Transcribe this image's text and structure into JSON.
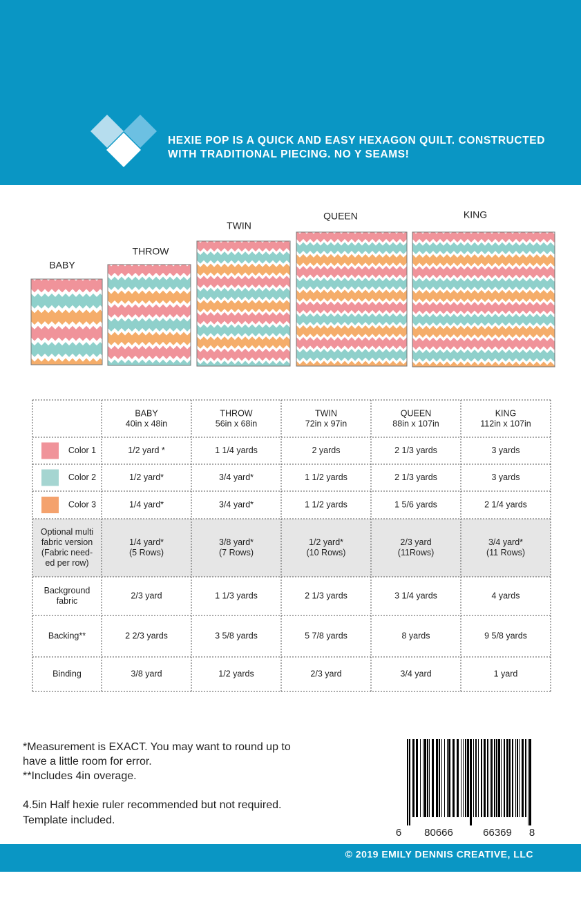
{
  "header": {
    "tagline": [
      "HEXIE POP IS A QUICK AND EASY HEXAGON QUILT.  CONSTRUCTED",
      "WITH TRADITIONAL PIECING. NO Y SEAMS!"
    ]
  },
  "quilt_labels": [
    "BABY",
    "THROW",
    "TWIN",
    "QUEEN",
    "KING"
  ],
  "table": {
    "columns": [
      {
        "name": "BABY",
        "size": "40in x 48in"
      },
      {
        "name": "THROW",
        "size": "56in x 68in"
      },
      {
        "name": "TWIN",
        "size": "72in x 97in"
      },
      {
        "name": "QUEEN",
        "size": "88in x 107in"
      },
      {
        "name": "KING",
        "size": "112in x 107in"
      }
    ],
    "rows": [
      {
        "label": [
          "Color 1"
        ],
        "swatch": "#f0939a",
        "cells": [
          [
            "1/2 yard *"
          ],
          [
            "1 1/4 yards"
          ],
          [
            "2 yards"
          ],
          [
            "2 1/3 yards"
          ],
          [
            "3 yards"
          ]
        ]
      },
      {
        "label": [
          "Color 2"
        ],
        "swatch": "#a5d5d1",
        "cells": [
          [
            "1/2 yard*"
          ],
          [
            "3/4 yard*"
          ],
          [
            "1 1/2 yards"
          ],
          [
            "2 1/3 yards"
          ],
          [
            "3 yards"
          ]
        ]
      },
      {
        "label": [
          "Color 3"
        ],
        "swatch": "#f4a26d",
        "cells": [
          [
            "1/4 yard*"
          ],
          [
            "3/4 yard*"
          ],
          [
            "1 1/2 yards"
          ],
          [
            "1 5/6 yards"
          ],
          [
            "2 1/4 yards"
          ]
        ]
      },
      {
        "label": [
          "Optional multi",
          "fabric version",
          "(Fabric need-",
          "ed per row)"
        ],
        "background": "#e6e6e6",
        "cells": [
          [
            "1/4 yard*",
            "(5 Rows)"
          ],
          [
            "3/8 yard*",
            "(7 Rows)"
          ],
          [
            "1/2 yard*",
            "(10 Rows)"
          ],
          [
            "2/3 yard",
            "(11Rows)"
          ],
          [
            "3/4 yard*",
            "(11 Rows)"
          ]
        ]
      },
      {
        "label": [
          "Background",
          "fabric"
        ],
        "cells": [
          [
            "2/3 yard"
          ],
          [
            "1 1/3 yards"
          ],
          [
            "2 1/3 yards"
          ],
          [
            "3 1/4 yards"
          ],
          [
            "4 yards"
          ]
        ]
      },
      {
        "label": [
          "Backing**"
        ],
        "cells": [
          [
            "2 2/3 yards"
          ],
          [
            "3 5/8 yards"
          ],
          [
            "5 7/8 yards"
          ],
          [
            "8 yards"
          ],
          [
            "9 5/8 yards"
          ]
        ]
      },
      {
        "label": [
          "Binding"
        ],
        "cells": [
          [
            "3/8 yard"
          ],
          [
            "1/2 yards"
          ],
          [
            "2/3 yard"
          ],
          [
            "3/4 yard"
          ],
          [
            "1 yard"
          ]
        ]
      }
    ]
  },
  "notes": [
    "*Measurement is EXACT.  You may want to round up to",
    "have a little room for error.",
    "**Includes 4in overage.",
    "4.5in Half hexie ruler recommended but not required.",
    "Template included."
  ],
  "barcode": {
    "digits": [
      "6",
      "80666",
      "66369",
      "8"
    ]
  },
  "footer": {
    "copyright": "© 2019 EMILY DENNIS CREATIVE, LLC"
  }
}
